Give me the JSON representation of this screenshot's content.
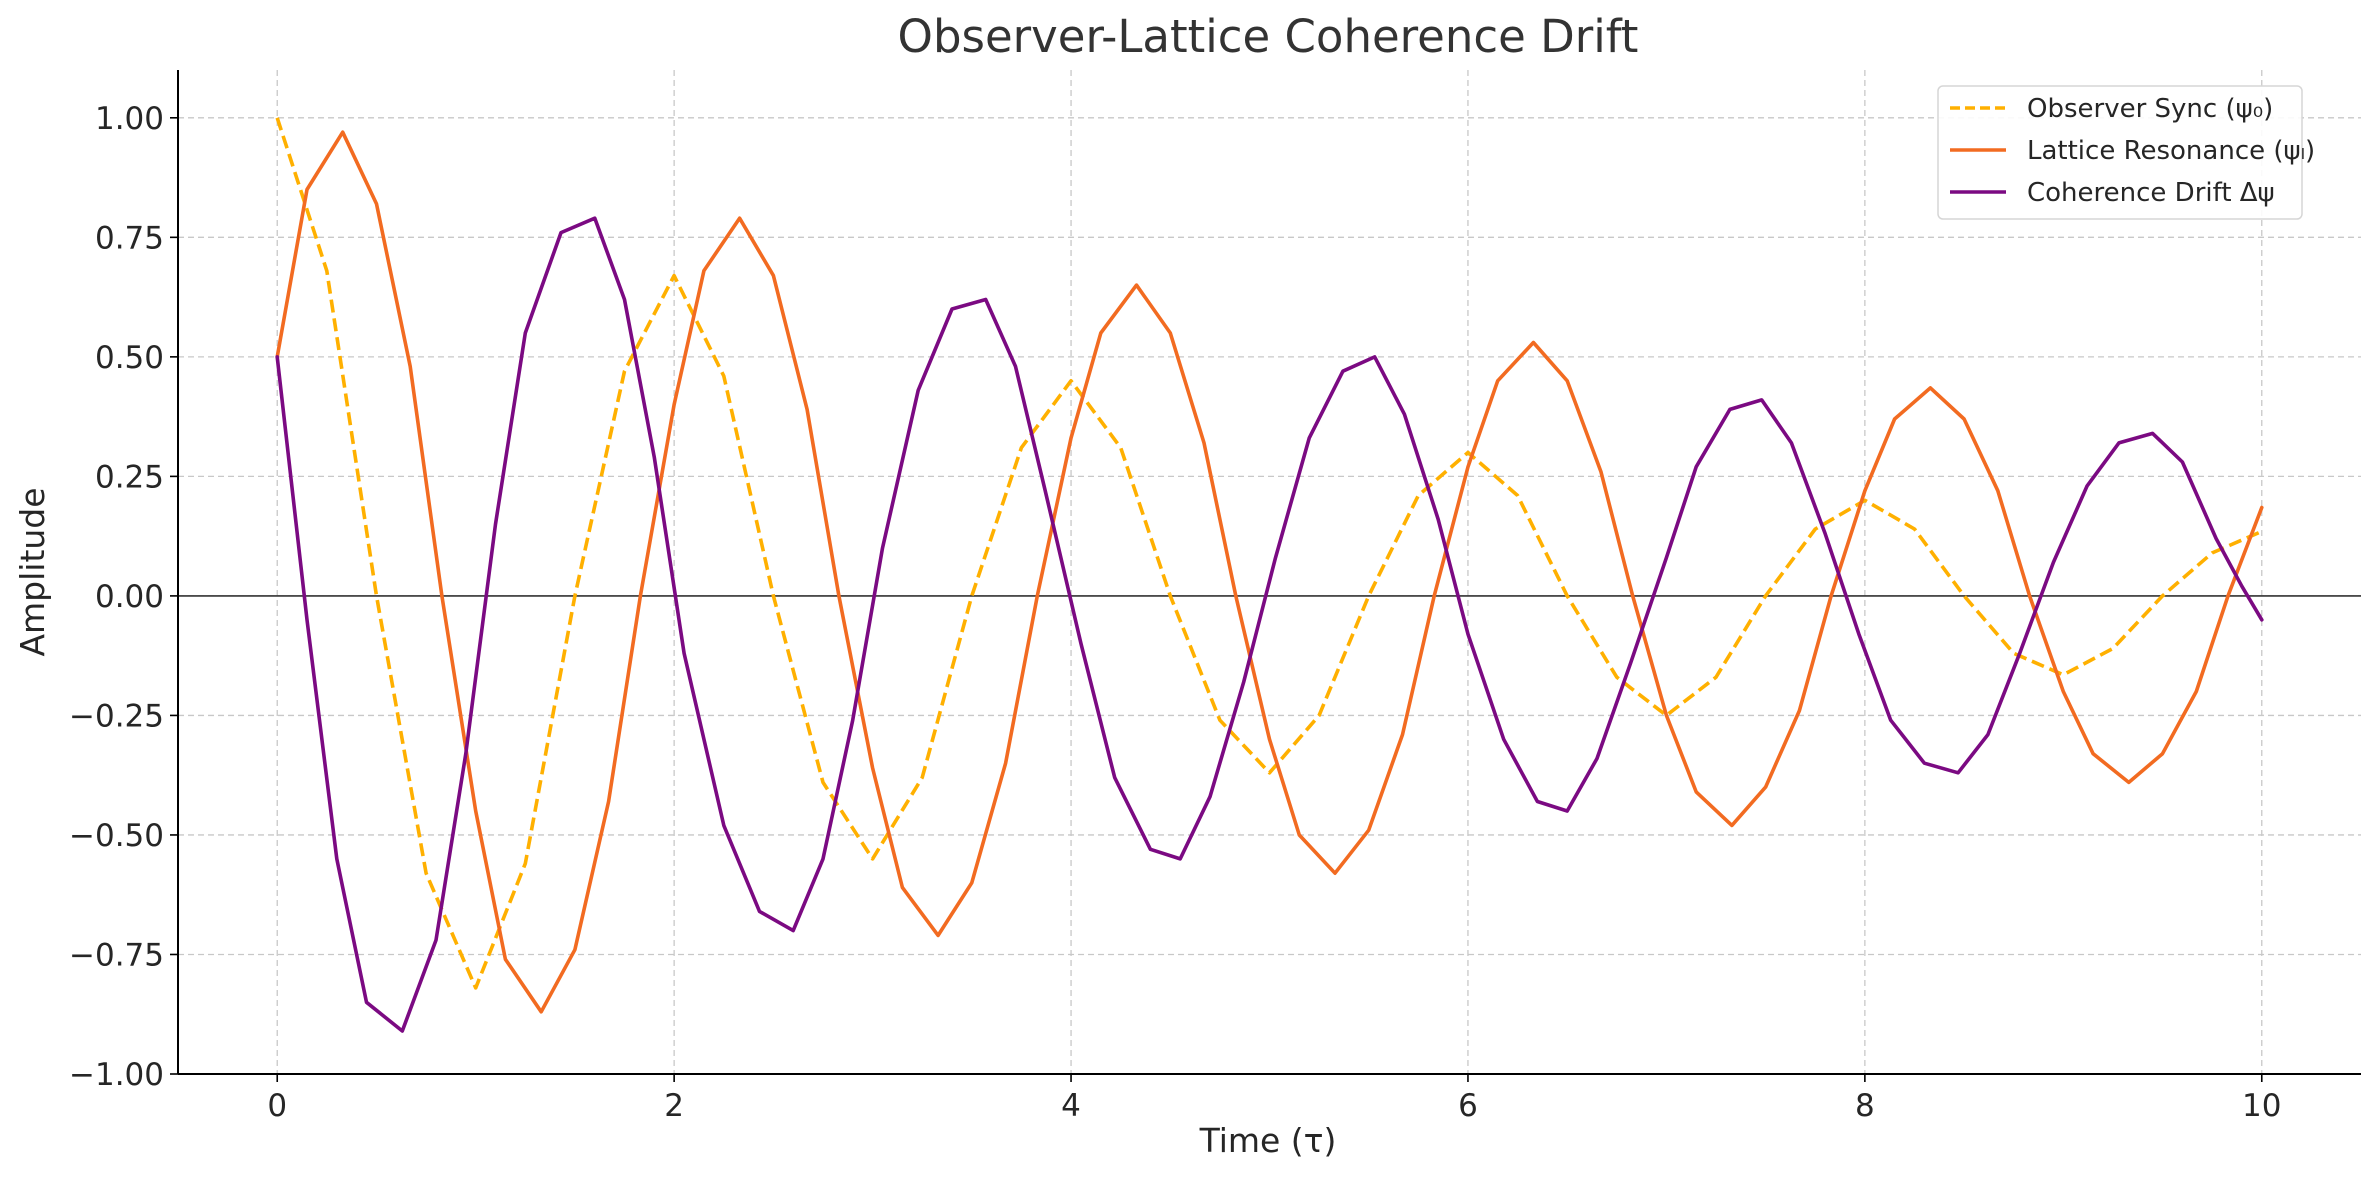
{
  "chart_data": {
    "type": "line",
    "title": "Observer-Lattice Coherence Drift",
    "xlabel": "Time (τ)",
    "ylabel": "Amplitude",
    "xlim": [
      -0.5,
      10.5
    ],
    "ylim": [
      -1.0,
      1.1
    ],
    "x_ticks": [
      0,
      2,
      4,
      6,
      8,
      10
    ],
    "x_tick_labels": [
      "0",
      "2",
      "4",
      "6",
      "8",
      "10"
    ],
    "y_ticks": [
      -1.0,
      -0.75,
      -0.5,
      -0.25,
      0.0,
      0.25,
      0.5,
      0.75,
      1.0
    ],
    "y_tick_labels": [
      "−1.00",
      "−0.75",
      "−0.50",
      "−0.25",
      "0.00",
      "0.25",
      "0.50",
      "0.75",
      "1.00"
    ],
    "grid": true,
    "zero_line": true,
    "legend_position": "top-right",
    "series": [
      {
        "name": "Observer Sync (ψ₀)",
        "color": "#ffb000",
        "style": "dashed",
        "x": [
          0,
          0.25,
          0.5,
          0.75,
          1,
          1.25,
          1.5,
          1.75,
          2,
          2.25,
          2.5,
          2.75,
          3,
          3.25,
          3.5,
          3.75,
          4,
          4.25,
          4.5,
          4.75,
          5,
          5.25,
          5.5,
          5.75,
          6,
          6.25,
          6.5,
          6.75,
          7,
          7.25,
          7.5,
          7.75,
          8,
          8.25,
          8.5,
          8.75,
          9,
          9.25,
          9.5,
          9.75,
          10
        ],
        "y": [
          1.0,
          0.68,
          0.0,
          -0.58,
          -0.82,
          -0.56,
          0.0,
          0.47,
          0.67,
          0.46,
          0.0,
          -0.39,
          -0.55,
          -0.38,
          0.0,
          0.31,
          0.45,
          0.31,
          0.0,
          -0.26,
          -0.37,
          -0.25,
          0.0,
          0.21,
          0.3,
          0.21,
          0.0,
          -0.17,
          -0.25,
          -0.17,
          0.0,
          0.14,
          0.2,
          0.14,
          0.0,
          -0.12,
          -0.165,
          -0.11,
          0.0,
          0.09,
          0.135
        ]
      },
      {
        "name": "Lattice Resonance (ψₗ)",
        "color": "#f26b21",
        "style": "solid",
        "x": [
          0,
          0.15,
          0.33,
          0.5,
          0.67,
          0.83,
          1,
          1.15,
          1.33,
          1.5,
          1.67,
          1.83,
          2,
          2.15,
          2.33,
          2.5,
          2.67,
          2.83,
          3,
          3.15,
          3.33,
          3.5,
          3.67,
          3.83,
          4,
          4.15,
          4.33,
          4.5,
          4.67,
          4.83,
          5,
          5.15,
          5.33,
          5.5,
          5.67,
          5.83,
          6,
          6.15,
          6.33,
          6.5,
          6.67,
          6.83,
          7,
          7.15,
          7.33,
          7.5,
          7.67,
          7.83,
          8,
          8.15,
          8.33,
          8.5,
          8.67,
          8.83,
          9,
          9.15,
          9.33,
          9.5,
          9.67,
          9.83,
          10
        ],
        "y": [
          0.5,
          0.85,
          0.97,
          0.82,
          0.48,
          0.0,
          -0.45,
          -0.76,
          -0.87,
          -0.74,
          -0.43,
          0.0,
          0.4,
          0.68,
          0.79,
          0.67,
          0.39,
          0.0,
          -0.36,
          -0.61,
          -0.71,
          -0.6,
          -0.35,
          0.0,
          0.33,
          0.55,
          0.65,
          0.55,
          0.32,
          0.0,
          -0.3,
          -0.5,
          -0.58,
          -0.49,
          -0.29,
          0.0,
          0.27,
          0.45,
          0.53,
          0.45,
          0.26,
          0.0,
          -0.25,
          -0.41,
          -0.48,
          -0.4,
          -0.24,
          0.0,
          0.22,
          0.37,
          0.435,
          0.37,
          0.22,
          0.0,
          -0.2,
          -0.33,
          -0.39,
          -0.33,
          -0.2,
          0.0,
          0.185
        ]
      },
      {
        "name": "Coherence Drift Δψ",
        "color": "#7b0a82",
        "style": "solid",
        "x": [
          0,
          0.15,
          0.3,
          0.45,
          0.63,
          0.8,
          0.95,
          1.1,
          1.25,
          1.43,
          1.6,
          1.75,
          1.9,
          2.05,
          2.25,
          2.43,
          2.6,
          2.75,
          2.9,
          3.05,
          3.23,
          3.4,
          3.57,
          3.72,
          3.87,
          4.05,
          4.22,
          4.4,
          4.55,
          4.7,
          4.87,
          5.03,
          5.2,
          5.37,
          5.53,
          5.68,
          5.85,
          6.0,
          6.18,
          6.35,
          6.5,
          6.65,
          6.82,
          7.0,
          7.15,
          7.32,
          7.48,
          7.63,
          7.8,
          7.97,
          8.13,
          8.3,
          8.47,
          8.62,
          8.78,
          8.95,
          9.12,
          9.28,
          9.45,
          9.6,
          9.77,
          9.9,
          10.0
        ],
        "y": [
          0.5,
          -0.05,
          -0.55,
          -0.85,
          -0.91,
          -0.72,
          -0.33,
          0.15,
          0.55,
          0.76,
          0.79,
          0.62,
          0.29,
          -0.12,
          -0.48,
          -0.66,
          -0.7,
          -0.55,
          -0.26,
          0.1,
          0.43,
          0.6,
          0.62,
          0.48,
          0.22,
          -0.1,
          -0.38,
          -0.53,
          -0.55,
          -0.42,
          -0.18,
          0.08,
          0.33,
          0.47,
          0.5,
          0.38,
          0.16,
          -0.08,
          -0.3,
          -0.43,
          -0.45,
          -0.34,
          -0.14,
          0.08,
          0.27,
          0.39,
          0.41,
          0.32,
          0.13,
          -0.08,
          -0.26,
          -0.35,
          -0.37,
          -0.29,
          -0.12,
          0.07,
          0.23,
          0.32,
          0.34,
          0.28,
          0.12,
          0.02,
          -0.05
        ]
      }
    ]
  }
}
